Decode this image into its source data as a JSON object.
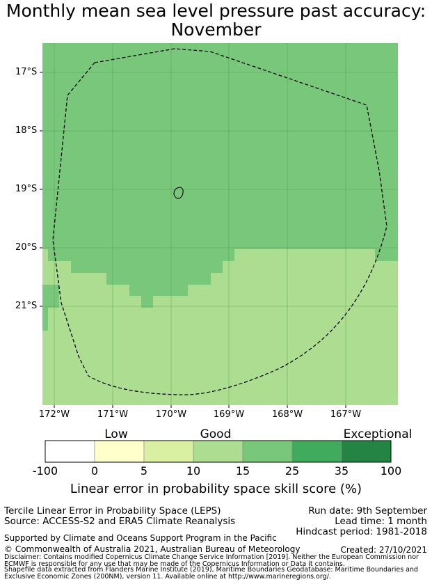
{
  "header": {
    "title_line1": "Monthly mean sea level pressure past accuracy:",
    "title_line2": "November"
  },
  "map": {
    "lat_labels": [
      "17°S",
      "18°S",
      "19°S",
      "20°S",
      "21°S"
    ],
    "lon_labels": [
      "172°W",
      "171°W",
      "170°W",
      "169°W",
      "168°W",
      "167°W"
    ],
    "colors": {
      "good": "#acdd90",
      "very_good": "#78c77b",
      "grid": "#3f8f3f",
      "boundary": "#000000"
    }
  },
  "colorbar": {
    "category_labels": [
      "Low",
      "Good",
      "Exceptional"
    ],
    "tick_labels": [
      "-100",
      "0",
      "5",
      "10",
      "15",
      "25",
      "35",
      "100"
    ],
    "colors": [
      "#ffffff",
      "#ffffcc",
      "#d9efa1",
      "#acdd90",
      "#78c77b",
      "#41ab5d",
      "#238443"
    ],
    "title": "Linear error in probability space skill score (%)"
  },
  "info": {
    "method": "Tercile Linear Error in Probability Space (LEPS)",
    "source": "Source: ACCESS-S2 and ERA5 Climate Reanalysis",
    "run_date": "Run date: 9th September",
    "lead_time": "Lead time: 1 month",
    "hindcast": "Hindcast period: 1981-2018",
    "support": "Supported by Climate and Oceans Support Program in the Pacific",
    "copyright": "© Commonwealth of Australia 2021, Australian Bureau of Meteorology",
    "created": "Created: 27/10/2021",
    "disclaimer_1": "Disclaimer: Contains modified Copernicus Climate Change Service Information [2019]. Neither the European Commission nor",
    "disclaimer_2": "ECMWF is responsible for any use that may be made of the Copernicus Information or Data it contains.",
    "shapefile_1": "Shapefile data extracted from Flanders Marine Institute (2019), Maritime Boundaries Geodatabase: Maritime Boundaries and",
    "shapefile_2": "Exclusive Economic Zones (200NM), version 11. Available online at http://www.marineregions.org/."
  }
}
